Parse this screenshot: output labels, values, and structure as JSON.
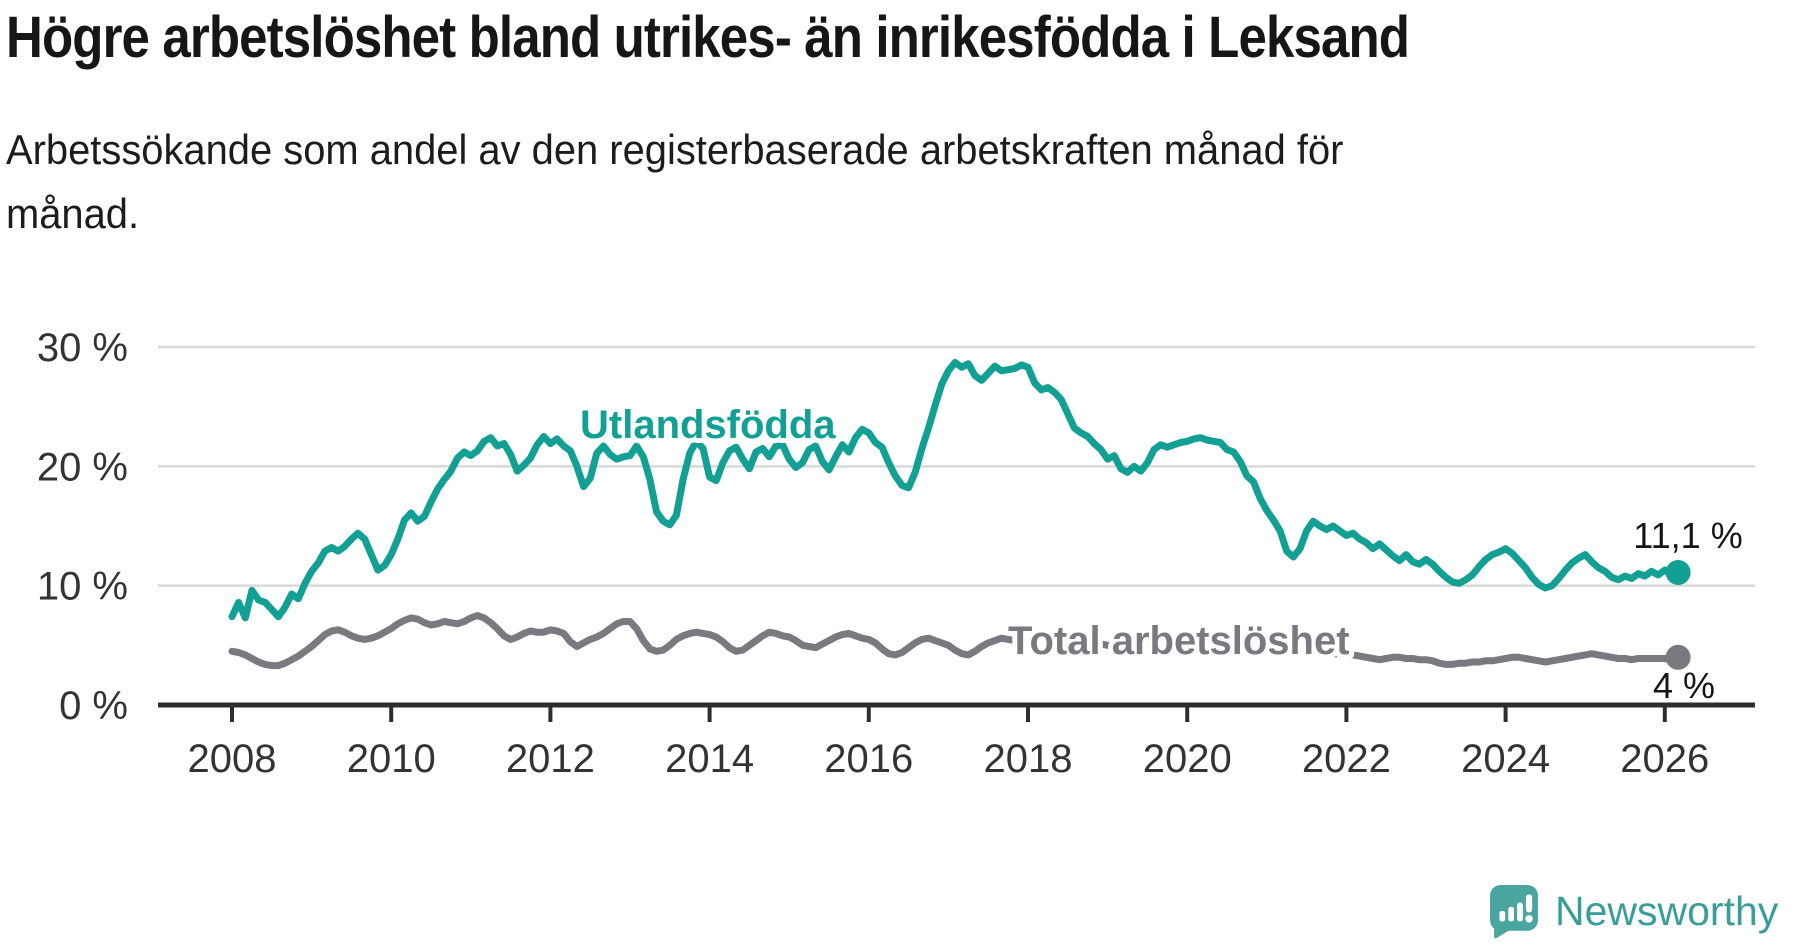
{
  "header": {
    "title": "Högre arbetslöshet bland utrikes- än inrikesfödda i Leksand",
    "subtitle_lines": [
      "Arbetssökande som andel av den registerbaserade arbetskraften månad för",
      "månad."
    ]
  },
  "chart_data": {
    "type": "line",
    "unit": "%",
    "frequency": "monthly",
    "start": {
      "year": 2008,
      "month": 1
    },
    "end": {
      "year": 2026,
      "month": 3
    },
    "grid": "horizontal-only",
    "legend_position": "inline-labels",
    "x_axis": {
      "ticks": [
        "2008",
        "2010",
        "2012",
        "2014",
        "2016",
        "2018",
        "2020",
        "2022",
        "2024",
        "2026"
      ]
    },
    "y_axis": {
      "range": [
        0,
        31
      ],
      "ticks": [
        {
          "value": 0,
          "label": "0 %"
        },
        {
          "value": 10,
          "label": "10 %"
        },
        {
          "value": 20,
          "label": "20 %"
        },
        {
          "value": 30,
          "label": "30 %"
        }
      ]
    },
    "series": [
      {
        "name": "Utlandsfödda",
        "color": "#12a094",
        "end_label": "11,1 %",
        "end_value": 11.1,
        "values": [
          7.4,
          8.6,
          7.3,
          9.6,
          8.8,
          8.6,
          8.0,
          7.4,
          8.2,
          9.3,
          8.9,
          10.2,
          11.2,
          11.9,
          12.9,
          13.2,
          12.9,
          13.3,
          13.9,
          14.4,
          13.9,
          12.6,
          11.3,
          11.7,
          12.6,
          13.9,
          15.5,
          16.1,
          15.4,
          15.8,
          17.0,
          18.1,
          18.9,
          19.6,
          20.7,
          21.2,
          20.9,
          21.3,
          22.1,
          22.4,
          21.7,
          21.9,
          21.0,
          19.6,
          20.1,
          20.7,
          21.8,
          22.5,
          21.9,
          22.3,
          21.7,
          21.3,
          20.0,
          18.3,
          19.0,
          21.1,
          21.7,
          21.0,
          20.6,
          20.8,
          20.9,
          21.7,
          20.8,
          18.9,
          16.2,
          15.4,
          15.1,
          15.9,
          18.9,
          21.1,
          22.1,
          21.5,
          19.1,
          18.8,
          20.3,
          21.3,
          21.6,
          20.6,
          19.8,
          21.2,
          21.5,
          20.8,
          21.7,
          21.8,
          20.6,
          19.9,
          20.3,
          21.4,
          21.7,
          20.4,
          19.7,
          20.8,
          21.8,
          21.2,
          22.4,
          23.1,
          22.8,
          22.0,
          21.6,
          20.3,
          19.2,
          18.4,
          18.2,
          19.5,
          21.5,
          23.2,
          25.1,
          26.9,
          28.0,
          28.7,
          28.3,
          28.6,
          27.6,
          27.2,
          27.8,
          28.4,
          28.0,
          28.1,
          28.2,
          28.5,
          28.3,
          27.0,
          26.4,
          26.6,
          26.2,
          25.6,
          24.4,
          23.2,
          22.8,
          22.5,
          21.9,
          21.4,
          20.6,
          20.9,
          19.8,
          19.5,
          20.0,
          19.6,
          20.3,
          21.4,
          21.8,
          21.6,
          21.8,
          22.0,
          22.1,
          22.3,
          22.4,
          22.2,
          22.1,
          22.0,
          21.4,
          21.2,
          20.4,
          19.2,
          18.7,
          17.3,
          16.3,
          15.5,
          14.6,
          12.9,
          12.4,
          13.1,
          14.6,
          15.4,
          15.0,
          14.7,
          15.0,
          14.6,
          14.2,
          14.4,
          13.9,
          13.6,
          13.1,
          13.5,
          13.0,
          12.5,
          12.1,
          12.6,
          12.0,
          11.8,
          12.2,
          11.8,
          11.2,
          10.7,
          10.3,
          10.2,
          10.5,
          10.9,
          11.6,
          12.2,
          12.6,
          12.8,
          13.1,
          12.7,
          12.1,
          11.5,
          10.7,
          10.1,
          9.8,
          10.0,
          10.6,
          11.3,
          11.9,
          12.3,
          12.6,
          12.0,
          11.5,
          11.2,
          10.7,
          10.5,
          10.8,
          10.6,
          11.0,
          10.8,
          11.2,
          10.9,
          11.3,
          10.9,
          11.1
        ]
      },
      {
        "name": "Total arbetslöshet",
        "color": "#7b7880",
        "end_label": "4 %",
        "end_value": 4.0,
        "values": [
          4.5,
          4.4,
          4.2,
          3.9,
          3.6,
          3.4,
          3.3,
          3.3,
          3.5,
          3.8,
          4.1,
          4.5,
          4.9,
          5.4,
          5.9,
          6.2,
          6.3,
          6.1,
          5.8,
          5.6,
          5.5,
          5.6,
          5.8,
          6.1,
          6.4,
          6.8,
          7.1,
          7.3,
          7.2,
          6.9,
          6.7,
          6.8,
          7.0,
          6.9,
          6.8,
          7.0,
          7.3,
          7.5,
          7.3,
          6.9,
          6.4,
          5.8,
          5.5,
          5.7,
          6.0,
          6.2,
          6.1,
          6.1,
          6.3,
          6.2,
          6.0,
          5.3,
          4.9,
          5.2,
          5.5,
          5.7,
          6.0,
          6.4,
          6.8,
          7.0,
          7.0,
          6.4,
          5.4,
          4.7,
          4.5,
          4.6,
          5.0,
          5.5,
          5.8,
          6.0,
          6.1,
          6.0,
          5.9,
          5.7,
          5.3,
          4.8,
          4.5,
          4.6,
          5.0,
          5.4,
          5.8,
          6.1,
          6.0,
          5.8,
          5.7,
          5.4,
          5.0,
          4.9,
          4.8,
          5.1,
          5.4,
          5.7,
          5.9,
          6.0,
          5.8,
          5.6,
          5.5,
          5.2,
          4.7,
          4.3,
          4.2,
          4.4,
          4.8,
          5.2,
          5.5,
          5.6,
          5.4,
          5.2,
          5.0,
          4.6,
          4.3,
          4.2,
          4.5,
          4.9,
          5.2,
          5.4,
          5.6,
          5.5,
          5.4,
          5.3,
          5.1,
          4.8,
          4.5,
          4.4,
          4.6,
          4.9,
          5.1,
          5.3,
          5.5,
          5.4,
          5.3,
          5.1,
          5.0,
          4.8,
          4.5,
          4.4,
          4.6,
          4.9,
          5.1,
          5.3,
          5.4,
          5.5,
          5.4,
          5.3,
          5.3,
          5.4,
          5.6,
          5.9,
          6.0,
          5.9,
          5.8,
          5.7,
          5.5,
          5.4,
          5.3,
          5.2,
          5.1,
          5.0,
          4.9,
          4.8,
          4.7,
          4.6,
          4.6,
          4.5,
          4.4,
          4.4,
          4.3,
          4.3,
          4.2,
          4.2,
          4.1,
          4.0,
          3.9,
          3.8,
          3.9,
          4.0,
          4.0,
          3.9,
          3.9,
          3.8,
          3.8,
          3.7,
          3.5,
          3.4,
          3.4,
          3.5,
          3.5,
          3.6,
          3.6,
          3.7,
          3.7,
          3.8,
          3.9,
          4.0,
          4.0,
          3.9,
          3.8,
          3.7,
          3.6,
          3.7,
          3.8,
          3.9,
          4.0,
          4.1,
          4.2,
          4.3,
          4.2,
          4.1,
          4.0,
          3.9,
          3.9,
          3.8,
          3.9,
          3.9,
          3.9,
          3.9,
          3.9,
          3.8,
          4.0
        ]
      }
    ]
  },
  "branding": {
    "logo_text": "Newsworthy",
    "logo_color": "#379e99",
    "logo_icon": "speech-bubble-bar-chart-exclamation"
  },
  "style": {
    "accent_teal": "#12a094",
    "line_gray": "#7b7880",
    "gridline_color": "#d9d9d9",
    "axis_color": "#2e2e2e"
  }
}
